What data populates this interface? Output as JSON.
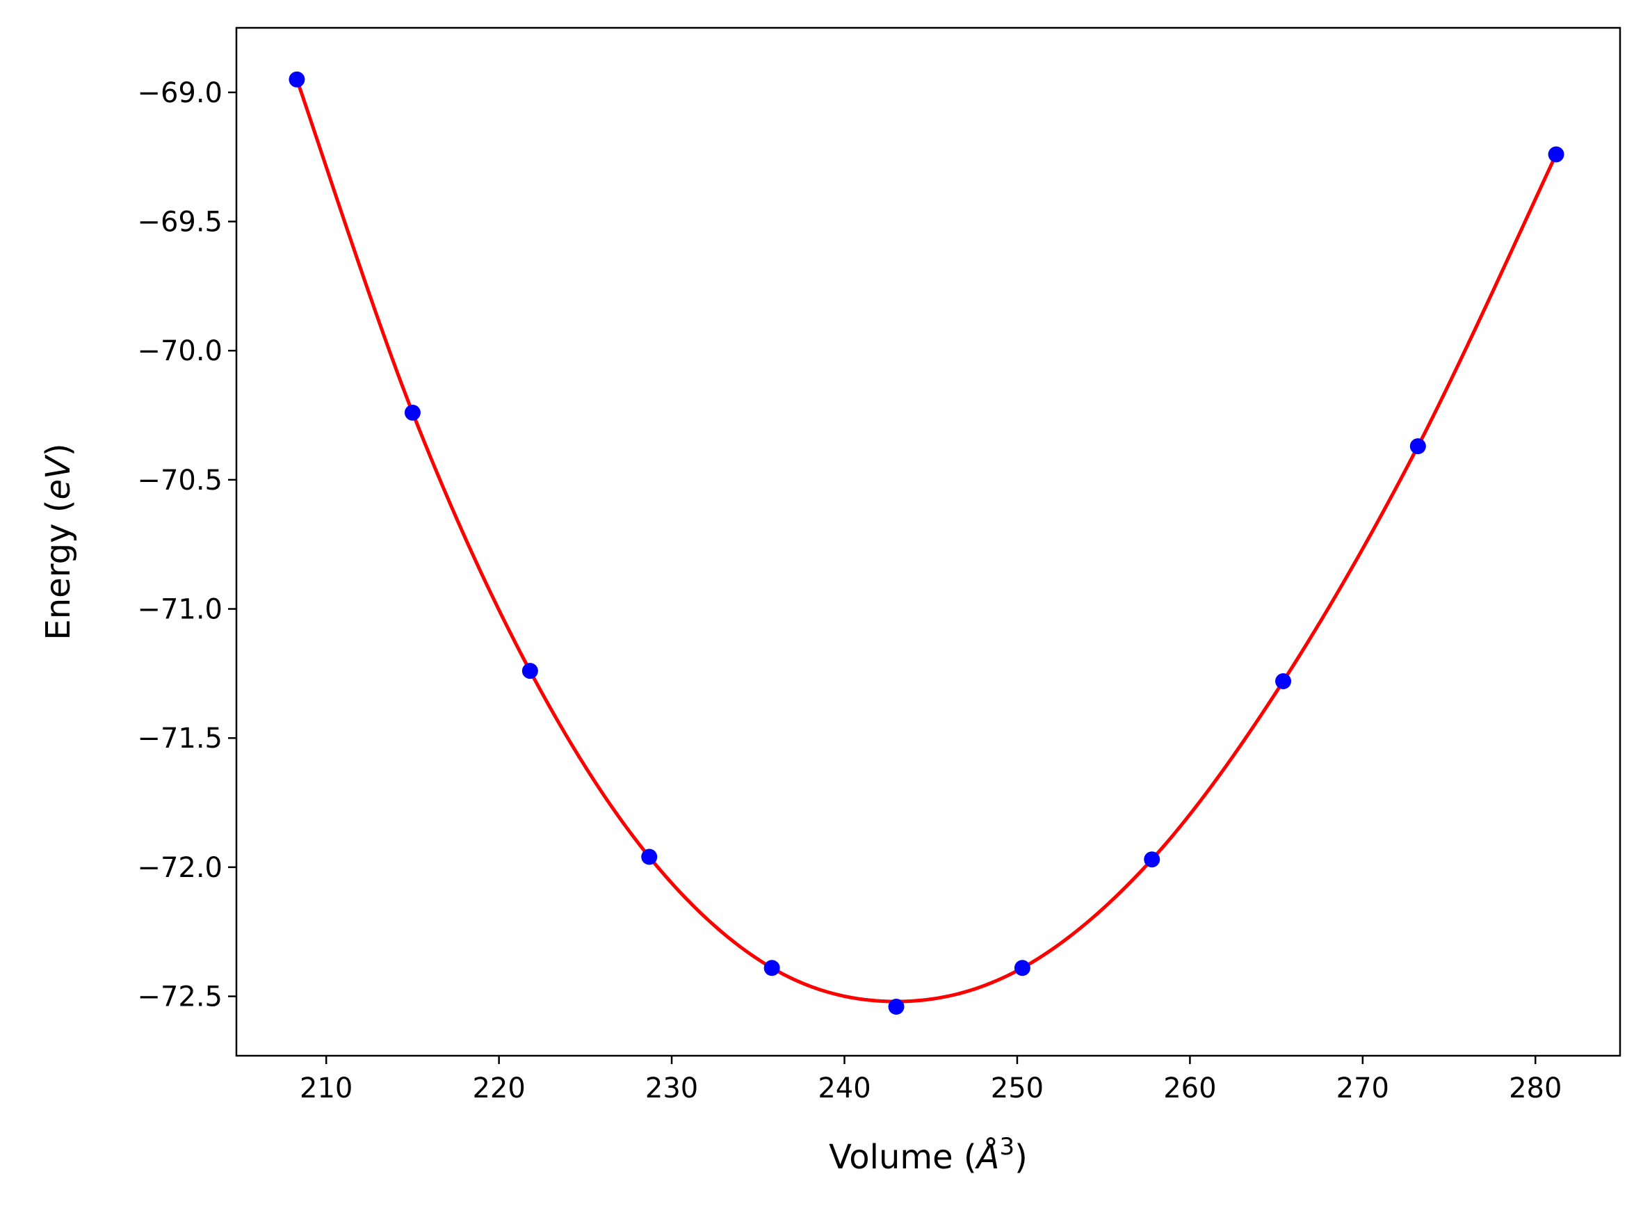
{
  "chart_data": {
    "type": "scatter",
    "title": "",
    "xlabel": {
      "prefix": "Volume (",
      "symbol": "Å",
      "exponent": "3",
      "suffix": ")"
    },
    "ylabel": {
      "prefix": "Energy (",
      "symbol": "eV",
      "suffix": ")"
    },
    "xlim": [
      204.8,
      284.9
    ],
    "ylim": [
      -72.73,
      -68.75
    ],
    "xticks": [
      210,
      220,
      230,
      240,
      250,
      260,
      270,
      280
    ],
    "yticks": [
      -69.0,
      -69.5,
      -70.0,
      -70.5,
      -71.0,
      -71.5,
      -72.0,
      -72.5
    ],
    "ytick_labels": [
      "−69.0",
      "−69.5",
      "−70.0",
      "−70.5",
      "−71.0",
      "−71.5",
      "−72.0",
      "−72.5"
    ],
    "grid": false,
    "legend": "none",
    "series": [
      {
        "kind": "points",
        "color": "#0000ff",
        "x": [
          208.3,
          215.0,
          221.8,
          228.7,
          235.8,
          243.0,
          250.3,
          257.8,
          265.4,
          273.2,
          281.2
        ],
        "y": [
          -68.95,
          -70.24,
          -71.24,
          -71.96,
          -72.39,
          -72.54,
          -72.39,
          -71.97,
          -71.28,
          -70.37,
          -69.24
        ]
      },
      {
        "kind": "fit-curve",
        "color": "#ff0000",
        "x": [
          208.3,
          215.0,
          221.8,
          228.7,
          235.8,
          243.0,
          250.3,
          257.8,
          265.4,
          273.2,
          281.2
        ],
        "y": [
          -68.95,
          -70.24,
          -71.24,
          -71.96,
          -72.39,
          -72.52,
          -72.39,
          -71.97,
          -71.28,
          -70.37,
          -69.24
        ]
      }
    ]
  }
}
